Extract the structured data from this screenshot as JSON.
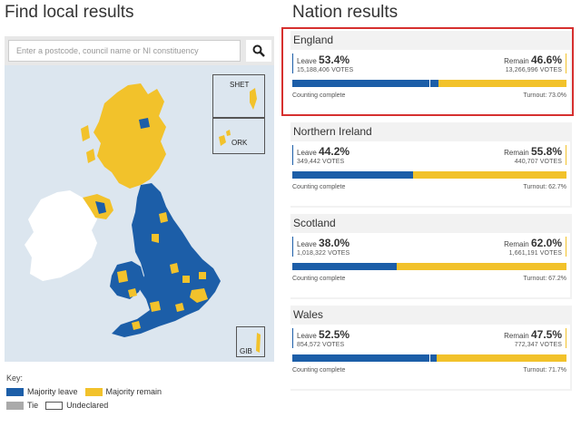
{
  "left": {
    "title": "Find local results",
    "search": {
      "placeholder": "Enter a postcode, council name or NI constituency",
      "value": ""
    },
    "map": {
      "insets": [
        {
          "label": "SHET"
        },
        {
          "label": "ORK"
        },
        {
          "label": "GIB"
        }
      ]
    },
    "key": {
      "title": "Key:",
      "items": [
        {
          "label": "Majority leave",
          "color": "#1c5ea8"
        },
        {
          "label": "Majority remain",
          "color": "#f2c22b"
        },
        {
          "label": "Tie",
          "color": "#aaaaaa"
        },
        {
          "label": "Undeclared",
          "color": "#ffffff"
        }
      ]
    }
  },
  "right": {
    "title": "Nation results",
    "nations": [
      {
        "name": "England",
        "leave_label": "Leave",
        "leave_pct": "53.4%",
        "leave_votes": "15,188,406 VOTES",
        "remain_label": "Remain",
        "remain_pct": "46.6%",
        "remain_votes": "13,266,996 VOTES",
        "status": "Counting complete",
        "turnout": "Turnout: 73.0%",
        "leave_share": 53.4
      },
      {
        "name": "Northern Ireland",
        "leave_label": "Leave",
        "leave_pct": "44.2%",
        "leave_votes": "349,442 VOTES",
        "remain_label": "Remain",
        "remain_pct": "55.8%",
        "remain_votes": "440,707 VOTES",
        "status": "Counting complete",
        "turnout": "Turnout: 62.7%",
        "leave_share": 44.2
      },
      {
        "name": "Scotland",
        "leave_label": "Leave",
        "leave_pct": "38.0%",
        "leave_votes": "1,018,322 VOTES",
        "remain_label": "Remain",
        "remain_pct": "62.0%",
        "remain_votes": "1,661,191 VOTES",
        "status": "Counting complete",
        "turnout": "Turnout: 67.2%",
        "leave_share": 38.0
      },
      {
        "name": "Wales",
        "leave_label": "Leave",
        "leave_pct": "52.5%",
        "leave_votes": "854,572 VOTES",
        "remain_label": "Remain",
        "remain_pct": "47.5%",
        "remain_votes": "772,347 VOTES",
        "status": "Counting complete",
        "turnout": "Turnout: 71.7%",
        "leave_share": 52.5
      }
    ],
    "highlighted": "England"
  },
  "colors": {
    "leave": "#1c5ea8",
    "remain": "#f2c22b",
    "highlight": "#d6302f",
    "sea": "#dce6ef",
    "ireland": "#ffffff"
  }
}
